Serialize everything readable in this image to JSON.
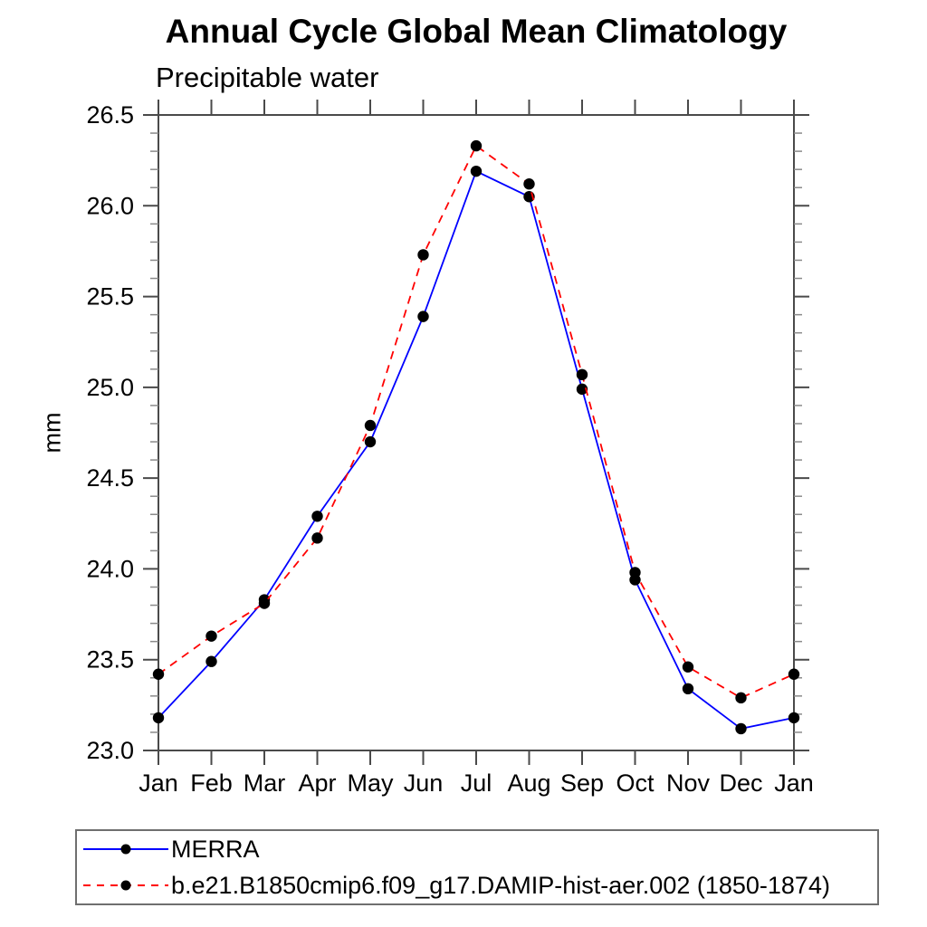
{
  "chart_data": {
    "type": "line",
    "title": "Annual Cycle Global Mean Climatology",
    "subtitle": "Precipitable water",
    "ylabel": "mm",
    "xlabel": "",
    "x_categories": [
      "Jan",
      "Feb",
      "Mar",
      "Apr",
      "May",
      "Jun",
      "Jul",
      "Aug",
      "Sep",
      "Oct",
      "Nov",
      "Dec",
      "Jan"
    ],
    "ylim": [
      23.0,
      26.5
    ],
    "ytick_labels": [
      "23.0",
      "23.5",
      "24.0",
      "24.5",
      "25.0",
      "25.5",
      "26.0",
      "26.5"
    ],
    "ytick_major_step": 0.5,
    "ytick_minor_step": 0.1,
    "grid": false,
    "legend_position": "bottom-left-box",
    "frame_color": "#4a4a4a",
    "series": [
      {
        "name": "MERRA",
        "color": "#0000ff",
        "line_style": "solid",
        "marker": "filled-circle",
        "marker_color": "#000000",
        "values": [
          23.18,
          23.49,
          23.83,
          24.29,
          24.7,
          25.39,
          26.19,
          26.05,
          24.99,
          23.94,
          23.34,
          23.12,
          23.18
        ]
      },
      {
        "name": "b.e21.B1850cmip6.f09_g17.DAMIP-hist-aer.002 (1850-1874)",
        "color": "#ff0000",
        "line_style": "dashed",
        "marker": "filled-circle",
        "marker_color": "#000000",
        "values": [
          23.42,
          23.63,
          23.81,
          24.17,
          24.79,
          25.73,
          26.33,
          26.12,
          25.07,
          23.98,
          23.46,
          23.29,
          23.42
        ]
      }
    ]
  }
}
